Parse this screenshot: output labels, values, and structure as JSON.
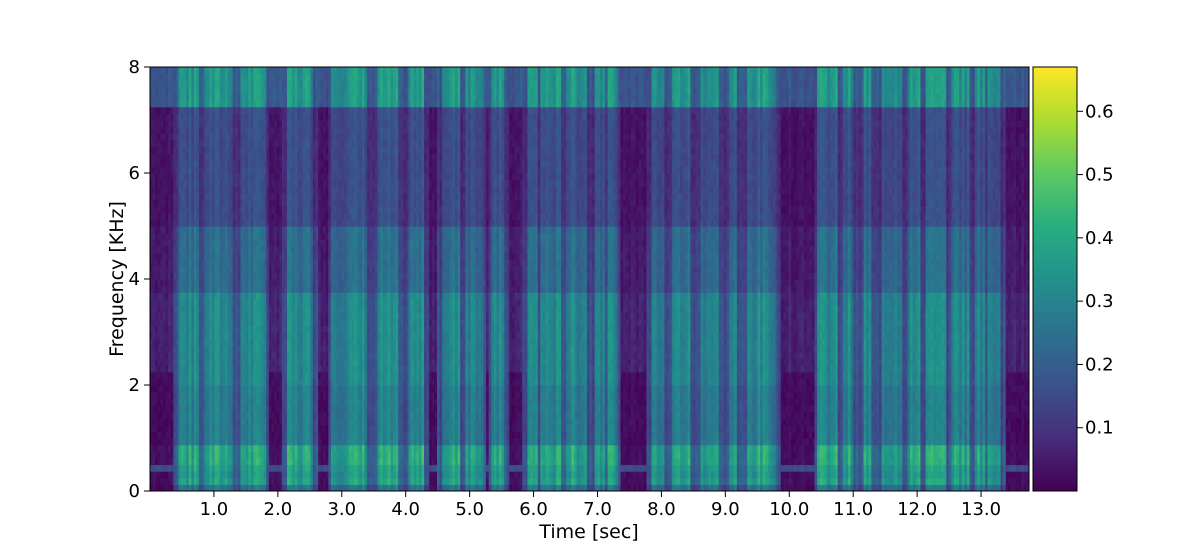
{
  "chart_data": {
    "type": "heatmap",
    "title": "",
    "xlabel": "Time [sec]",
    "ylabel": "Frequency [KHz]",
    "xlim": [
      0,
      13.75
    ],
    "ylim": [
      0,
      8
    ],
    "x_ticks": [
      1.0,
      2.0,
      3.0,
      4.0,
      5.0,
      6.0,
      7.0,
      8.0,
      9.0,
      10.0,
      11.0,
      12.0,
      13.0
    ],
    "x_tick_labels": [
      "1.0",
      "2.0",
      "3.0",
      "4.0",
      "5.0",
      "6.0",
      "7.0",
      "8.0",
      "9.0",
      "10.0",
      "11.0",
      "12.0",
      "13.0"
    ],
    "y_ticks": [
      0,
      2,
      4,
      6,
      8
    ],
    "y_tick_labels": [
      "0",
      "2",
      "4",
      "6",
      "8"
    ],
    "colorbar": {
      "colormap": "viridis",
      "range": [
        0.0,
        0.67
      ],
      "ticks": [
        0.1,
        0.2,
        0.3,
        0.4,
        0.5,
        0.6
      ],
      "tick_labels": [
        "0.1",
        "0.2",
        "0.3",
        "0.4",
        "0.5",
        "0.6"
      ]
    },
    "high_energy_segments_sec": [
      [
        0.45,
        0.75
      ],
      [
        0.85,
        1.3
      ],
      [
        1.4,
        1.8
      ],
      [
        2.15,
        2.55
      ],
      [
        2.85,
        3.4
      ],
      [
        3.55,
        3.9
      ],
      [
        4.05,
        4.3
      ],
      [
        4.55,
        4.85
      ],
      [
        4.95,
        5.2
      ],
      [
        5.35,
        5.55
      ],
      [
        5.9,
        6.05
      ],
      [
        6.1,
        6.45
      ],
      [
        6.5,
        6.85
      ],
      [
        6.95,
        7.1
      ],
      [
        7.15,
        7.3
      ],
      [
        7.85,
        8.05
      ],
      [
        8.15,
        8.45
      ],
      [
        8.6,
        8.9
      ],
      [
        9.05,
        9.2
      ],
      [
        9.35,
        9.8
      ],
      [
        10.45,
        10.75
      ],
      [
        10.85,
        11.0
      ],
      [
        11.15,
        11.3
      ],
      [
        11.45,
        11.75
      ],
      [
        11.85,
        12.05
      ],
      [
        12.15,
        12.45
      ],
      [
        12.55,
        12.8
      ],
      [
        12.9,
        13.05
      ],
      [
        13.1,
        13.3
      ]
    ]
  }
}
